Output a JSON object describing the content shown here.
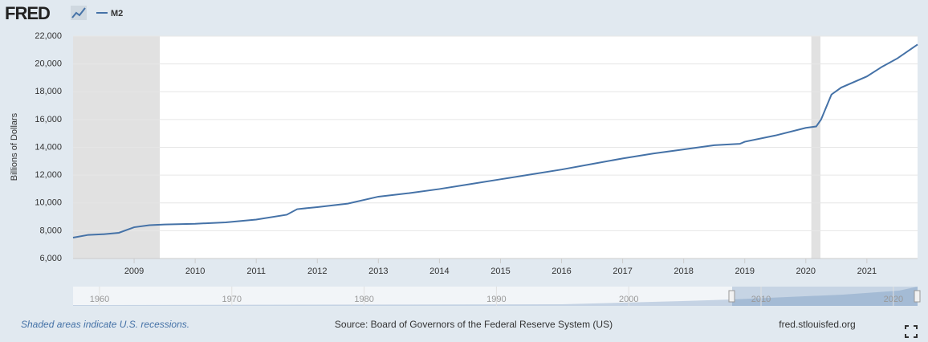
{
  "chart_data": {
    "type": "line",
    "logo": "FRED",
    "y_label": "Billions of Dollars",
    "footnote": "Shaded areas indicate U.S. recessions.",
    "source": "Source: Board of Governors of the Federal Reserve System (US)",
    "site": "fred.stlouisfed.org",
    "x": [
      2008.0,
      2008.25,
      2008.5,
      2008.75,
      2009.0,
      2009.25,
      2009.5,
      2010.0,
      2010.5,
      2011.0,
      2011.5,
      2011.67,
      2012.0,
      2012.5,
      2013.0,
      2013.5,
      2014.0,
      2014.5,
      2015.0,
      2015.5,
      2016.0,
      2016.5,
      2017.0,
      2017.5,
      2018.0,
      2018.5,
      2018.92,
      2019.0,
      2019.5,
      2020.0,
      2020.17,
      2020.25,
      2020.42,
      2020.58,
      2021.0,
      2021.25,
      2021.5,
      2021.83
    ],
    "series": [
      {
        "name": "M2",
        "color": "#4572a7",
        "values": [
          7500,
          7700,
          7750,
          7850,
          8250,
          8400,
          8450,
          8500,
          8600,
          8800,
          9150,
          9550,
          9700,
          9950,
          10450,
          10700,
          11000,
          11350,
          11700,
          12050,
          12400,
          12800,
          13200,
          13550,
          13850,
          14150,
          14250,
          14400,
          14850,
          15400,
          15500,
          16000,
          17800,
          18300,
          19100,
          19800,
          20400,
          21400
        ]
      }
    ],
    "recessions": [
      [
        2008.0,
        2009.42
      ],
      [
        2020.09,
        2020.24
      ]
    ],
    "xlim": [
      2008.0,
      2021.83
    ],
    "xticks": [
      2009,
      2010,
      2011,
      2012,
      2013,
      2014,
      2015,
      2016,
      2017,
      2018,
      2019,
      2020,
      2021
    ],
    "ylim": [
      6000,
      22000
    ],
    "yticks": [
      {
        "value": 6000,
        "label": "6,000"
      },
      {
        "value": 8000,
        "label": "8,000"
      },
      {
        "value": 10000,
        "label": "10,000"
      },
      {
        "value": 12000,
        "label": "12,000"
      },
      {
        "value": 14000,
        "label": "14,000"
      },
      {
        "value": 16000,
        "label": "16,000"
      },
      {
        "value": 18000,
        "label": "18,000"
      },
      {
        "value": 20000,
        "label": "20,000"
      },
      {
        "value": 22000,
        "label": "22,000"
      }
    ],
    "grid": true,
    "navigator": {
      "xlim": [
        1958,
        2021.83
      ],
      "xticks": [
        1960,
        1970,
        1980,
        1990,
        2000,
        2010,
        2020
      ]
    }
  }
}
